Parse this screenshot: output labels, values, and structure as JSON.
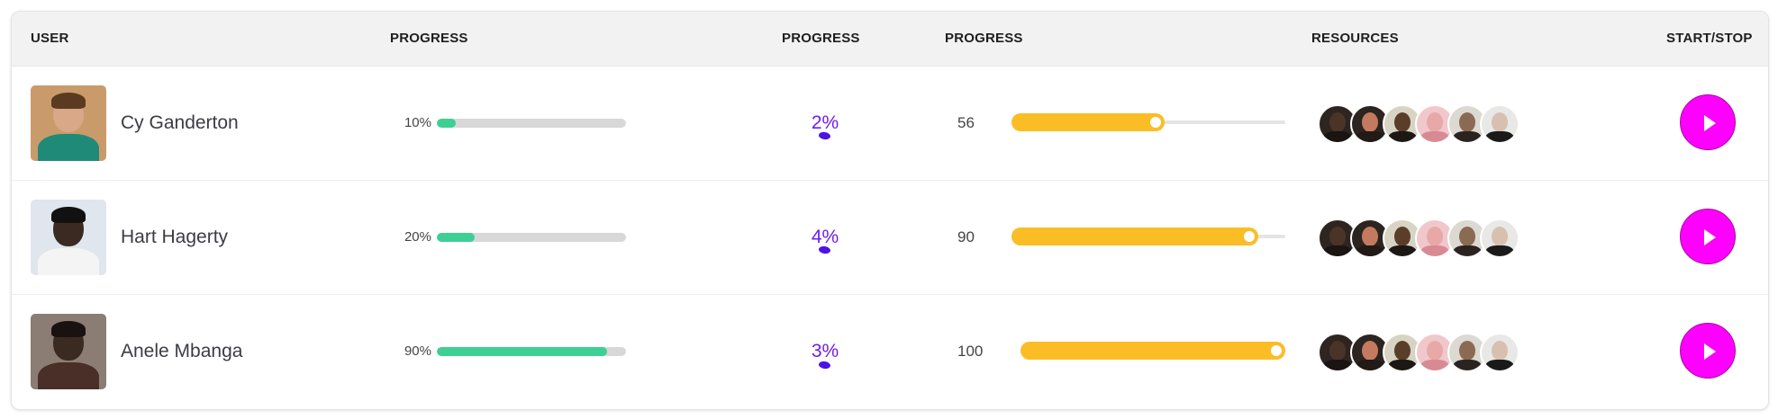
{
  "table": {
    "headers": [
      "USER",
      "PROGRESS",
      "PROGRESS",
      "PROGRESS",
      "RESOURCES",
      "START/STOP"
    ],
    "rows": [
      {
        "name": "Cy Ganderton",
        "progress_label": "10%",
        "progress_fraction": 0.1,
        "percent_label": "2%",
        "value_label": "56",
        "value_fraction": 0.56,
        "avatar_colors": {
          "bg": "#c99b6a",
          "skin": "#d8a888",
          "hair": "#5a3b22",
          "body": "#1f8a78"
        }
      },
      {
        "name": "Hart Hagerty",
        "progress_label": "20%",
        "progress_fraction": 0.2,
        "percent_label": "4%",
        "value_label": "90",
        "value_fraction": 0.9,
        "avatar_colors": {
          "bg": "#dfe6ee",
          "skin": "#3b2a22",
          "hair": "#111111",
          "body": "#f4f4f4"
        }
      },
      {
        "name": "Anele Mbanga",
        "progress_label": "90%",
        "progress_fraction": 0.9,
        "percent_label": "3%",
        "value_label": "100",
        "value_fraction": 1.0,
        "avatar_colors": {
          "bg": "#8b7d74",
          "skin": "#3a2a22",
          "hair": "#1a1210",
          "body": "#4a2e28"
        }
      }
    ]
  },
  "resource_avatars": [
    {
      "icon": "person-avatar-icon",
      "bg": "#2e2520",
      "skin": "#4a3428",
      "body": "#1a1412"
    },
    {
      "icon": "person-avatar-icon",
      "bg": "#2c2420",
      "skin": "#c47a5e",
      "body": "#221a16"
    },
    {
      "icon": "person-avatar-icon",
      "bg": "#d8d4c4",
      "skin": "#5a3e2a",
      "body": "#1c1814"
    },
    {
      "icon": "person-avatar-icon",
      "bg": "#f0c8cc",
      "skin": "#e8a8a8",
      "body": "#d88a94"
    },
    {
      "icon": "person-avatar-icon",
      "bg": "#dcd8d2",
      "skin": "#8a6a52",
      "body": "#2a2420"
    },
    {
      "icon": "person-avatar-icon",
      "bg": "#e8e8e6",
      "skin": "#d8c0b0",
      "body": "#1a1a1a"
    }
  ],
  "colors": {
    "green_bar": "#3ecf95",
    "yellow_bar": "#fbbd26",
    "purple_text": "#6d1cf0",
    "play_button": "#ff00ff"
  },
  "play_icon": "play-icon"
}
